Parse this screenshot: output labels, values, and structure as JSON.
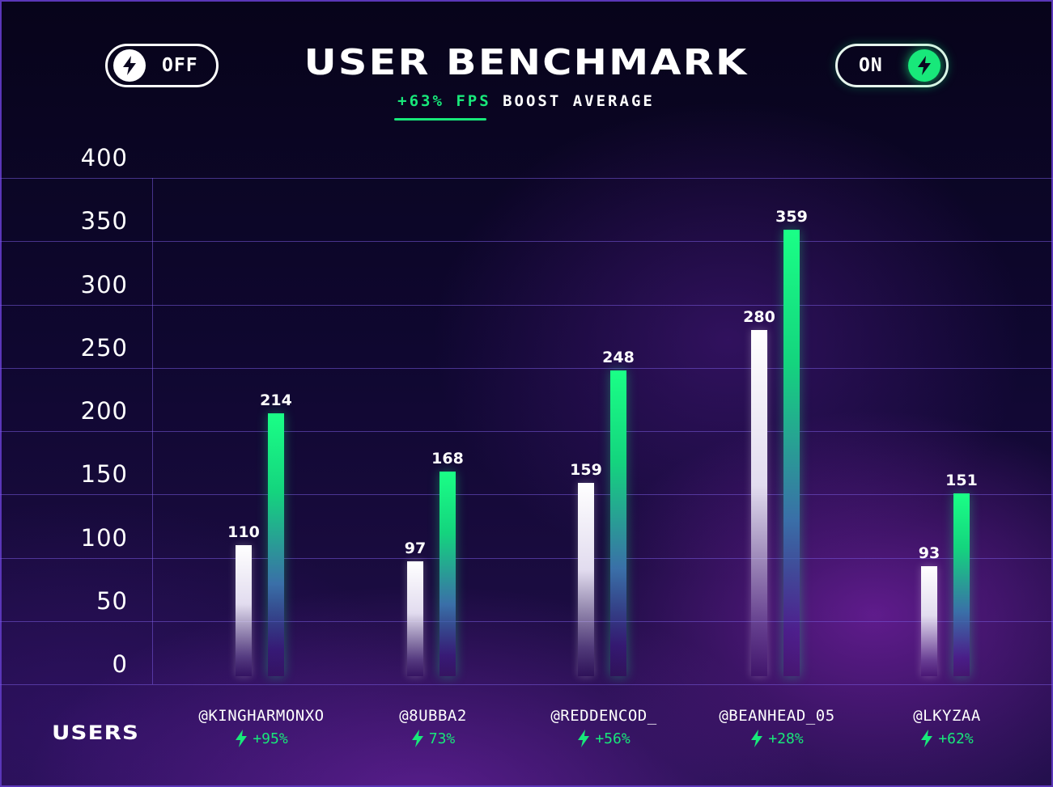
{
  "header": {
    "title": "USER BENCHMARK",
    "subtitle_accent": "+63% FPS",
    "subtitle_rest": " BOOST AVERAGE",
    "toggle_off_label": "OFF",
    "toggle_on_label": "ON",
    "toggle_off_icon": "bolt-icon",
    "toggle_on_icon": "bolt-icon"
  },
  "users_label": "USERS",
  "colors": {
    "accent": "#18e87a",
    "off_bar": "#ffffff",
    "grid": "#5a3fbf"
  },
  "chart_data": {
    "type": "bar",
    "title": "USER BENCHMARK",
    "subtitle": "+63% FPS BOOST AVERAGE",
    "categories": [
      "@KINGHARMONXO",
      "@8UBBA2",
      "@REDDENCOD_",
      "@BEANHEAD_05",
      "@LKYZAA"
    ],
    "series": [
      {
        "name": "OFF",
        "values": [
          110,
          97,
          159,
          280,
          93
        ]
      },
      {
        "name": "ON",
        "values": [
          214,
          168,
          248,
          359,
          151
        ]
      }
    ],
    "boosts": [
      "+95%",
      "73%",
      "+56%",
      "+28%",
      "+62%"
    ],
    "yticks": [
      "0",
      "50",
      "100",
      "150",
      "200",
      "250",
      "300",
      "350",
      "400"
    ],
    "ylim": [
      0,
      400
    ],
    "grid": true,
    "xlabel": "USERS",
    "ylabel": ""
  }
}
